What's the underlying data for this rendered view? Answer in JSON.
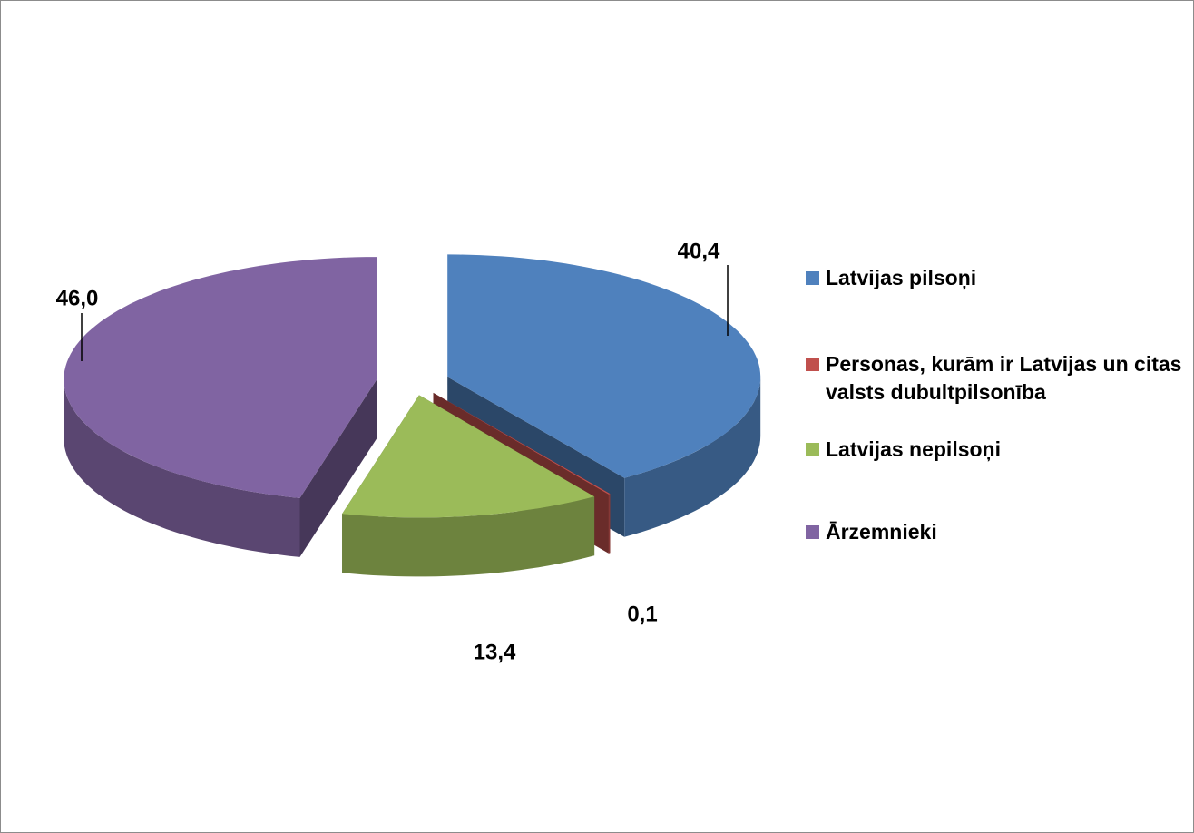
{
  "chart_data": {
    "type": "pie",
    "categories": [
      "Latvijas pilsoņi",
      "Personas, kurām ir Latvijas un citas valsts dubultpilsonība",
      "Latvijas nepilsoņi",
      "Ārzemnieki"
    ],
    "values": [
      40.4,
      0.1,
      13.4,
      46.0
    ],
    "value_labels": [
      "40,4",
      "0,1",
      "13,4",
      "46,0"
    ],
    "colors": [
      "#4f81bd",
      "#c0504d",
      "#9bbb59",
      "#8064a2"
    ],
    "legend": "right"
  }
}
